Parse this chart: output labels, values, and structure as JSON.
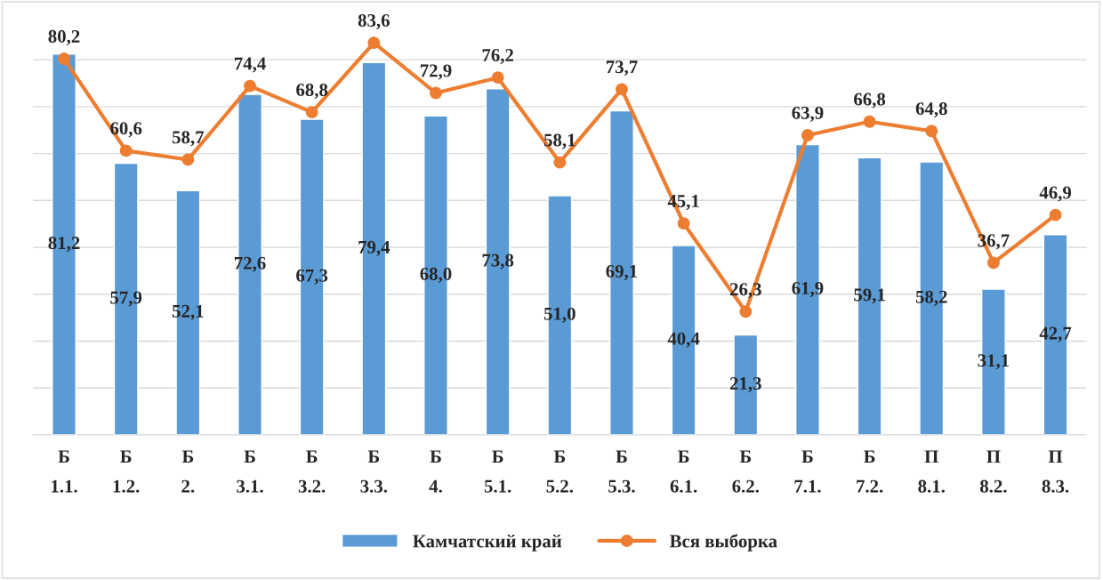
{
  "chart_data": {
    "type": "bar",
    "categories": [
      "Б\n1.1.",
      "Б\n1.2.",
      "Б\n2.",
      "Б\n3.1.",
      "Б\n3.2.",
      "Б\n3.3.",
      "Б\n4.",
      "Б\n5.1.",
      "Б\n5.2.",
      "Б\n5.3.",
      "Б\n6.1.",
      "Б\n6.2.",
      "Б\n7.1.",
      "Б\n7.2.",
      "П\n8.1.",
      "П\n8.2.",
      "П\n8.3."
    ],
    "series": [
      {
        "name": "Камчатский край",
        "color": "#5b9bd5",
        "values": [
          81.2,
          57.9,
          52.1,
          72.6,
          67.3,
          79.4,
          68.0,
          73.8,
          51.0,
          69.1,
          40.4,
          21.3,
          61.9,
          59.1,
          58.2,
          31.1,
          42.7
        ],
        "value_labels": [
          "81,2",
          "57,9",
          "52,1",
          "72,6",
          "67,3",
          "79,4",
          "68,0",
          "73,8",
          "51,0",
          "69,1",
          "40,4",
          "21,3",
          "61,9",
          "59,1",
          "58,2",
          "31,1",
          "42,7"
        ]
      },
      {
        "name": "Вся выборка",
        "type": "line",
        "color": "#ed7d31",
        "marker": "circle",
        "values": [
          80.2,
          60.6,
          58.7,
          74.4,
          68.8,
          83.6,
          72.9,
          76.2,
          58.1,
          73.7,
          45.1,
          26.3,
          63.9,
          66.8,
          64.8,
          36.7,
          46.9
        ],
        "value_labels": [
          "80,2",
          "60,6",
          "58,7",
          "74,4",
          "68,8",
          "83,6",
          "72,9",
          "76,2",
          "58,1",
          "73,7",
          "45,1",
          "26,3",
          "63,9",
          "66,8",
          "64,8",
          "36,7",
          "46,9"
        ]
      }
    ],
    "tick_labels": "x",
    "grid": "y",
    "legend": "bottom"
  }
}
